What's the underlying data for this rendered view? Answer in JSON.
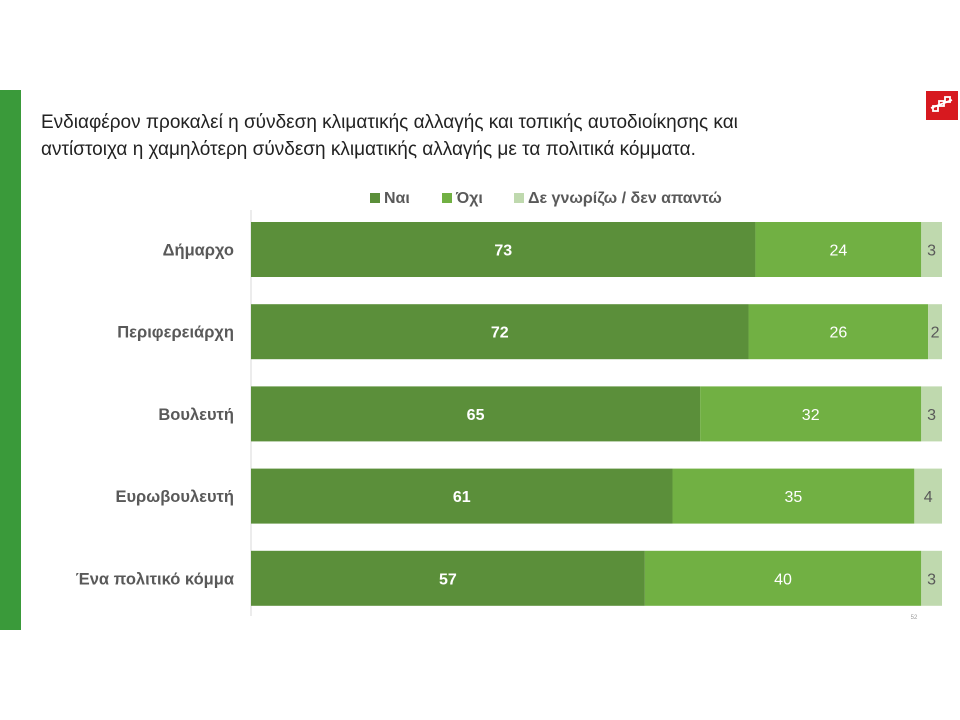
{
  "title_lines": [
    "Ενδιαφέρον προκαλεί η σύνδεση κλιματικής αλλαγής και τοπικής αυτοδιοίκησης και",
    "αντίστοιχα η χαμηλότερη σύνδεση κλιματικής αλλαγής με τα πολιτικά κόμματα."
  ],
  "logo_icon": "brand-logo-icon",
  "colors": {
    "accent_bar": "#3a9a3a",
    "logo_bg": "#d7191f",
    "yes": "#5b8f3a",
    "no": "#71b043",
    "dk": "#bfd9ae"
  },
  "chart_data": {
    "type": "bar",
    "orientation": "horizontal",
    "stacked": true,
    "categories": [
      "Δήμαρχο",
      "Περιφερειάρχη",
      "Βουλευτή",
      "Ευρωβουλευτή",
      "Ένα πολιτικό κόμμα"
    ],
    "series": [
      {
        "name": "Ναι",
        "values": [
          73,
          72,
          65,
          61,
          57
        ],
        "color": "#5b8f3a"
      },
      {
        "name": "Όχι",
        "values": [
          24,
          26,
          32,
          35,
          40
        ],
        "color": "#71b043"
      },
      {
        "name": "Δε γνωρίζω / δεν απαντώ",
        "values": [
          3,
          2,
          3,
          4,
          3
        ],
        "color": "#bfd9ae"
      }
    ],
    "xlim": [
      0,
      100
    ],
    "legend_position": "top",
    "grid": false,
    "page_number": "52"
  }
}
